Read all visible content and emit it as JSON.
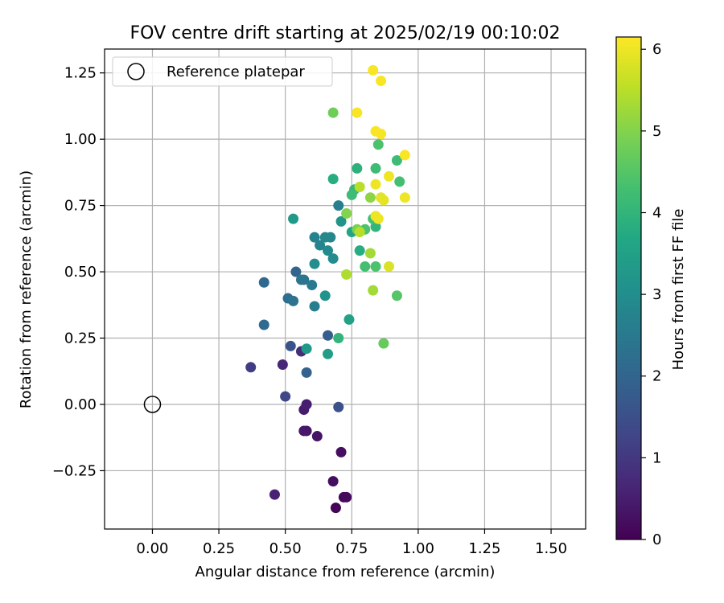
{
  "chart_data": {
    "type": "scatter",
    "title": "FOV centre drift starting at 2025/02/19 00:10:02",
    "xlabel": "Angular distance from reference (arcmin)",
    "ylabel": "Rotation from reference (arcmin)",
    "xlim": [
      -0.18,
      1.63
    ],
    "ylim": [
      -0.47,
      1.34
    ],
    "xticks": [
      0.0,
      0.25,
      0.5,
      0.75,
      1.0,
      1.25,
      1.5
    ],
    "xtick_labels": [
      "0.00",
      "0.25",
      "0.50",
      "0.75",
      "1.00",
      "1.25",
      "1.50"
    ],
    "yticks": [
      -0.25,
      0.0,
      0.25,
      0.5,
      0.75,
      1.0,
      1.25
    ],
    "ytick_labels": [
      "−0.25",
      "0.00",
      "0.25",
      "0.50",
      "0.75",
      "1.00",
      "1.25"
    ],
    "grid": true,
    "legend": {
      "position": "top-left",
      "entries": [
        {
          "label": "Reference platepar",
          "marker": "open-circle"
        }
      ]
    },
    "reference_point": {
      "x": 0.0,
      "y": 0.0
    },
    "colorbar": {
      "label": "Hours from first FF file",
      "colormap": "viridis",
      "range": [
        0,
        6.15
      ],
      "ticks": [
        0,
        1,
        2,
        3,
        4,
        5,
        6
      ],
      "tick_labels": [
        "0",
        "1",
        "2",
        "3",
        "4",
        "5",
        "6"
      ]
    },
    "color_variable": "Hours from first FF file",
    "points": [
      {
        "x": 0.69,
        "y": -0.39,
        "c": 0.05
      },
      {
        "x": 0.72,
        "y": -0.35,
        "c": 0.1
      },
      {
        "x": 0.73,
        "y": -0.35,
        "c": 0.15
      },
      {
        "x": 0.68,
        "y": -0.29,
        "c": 0.2
      },
      {
        "x": 0.71,
        "y": -0.18,
        "c": 0.25
      },
      {
        "x": 0.62,
        "y": -0.12,
        "c": 0.3
      },
      {
        "x": 0.58,
        "y": -0.1,
        "c": 0.35
      },
      {
        "x": 0.57,
        "y": -0.1,
        "c": 0.4
      },
      {
        "x": 0.57,
        "y": -0.02,
        "c": 0.45
      },
      {
        "x": 0.58,
        "y": 0.0,
        "c": 0.5
      },
      {
        "x": 0.46,
        "y": -0.34,
        "c": 0.6
      },
      {
        "x": 0.49,
        "y": 0.15,
        "c": 0.7
      },
      {
        "x": 0.56,
        "y": 0.2,
        "c": 0.8
      },
      {
        "x": 0.37,
        "y": 0.14,
        "c": 1.1
      },
      {
        "x": 0.5,
        "y": 0.03,
        "c": 1.3
      },
      {
        "x": 0.7,
        "y": -0.01,
        "c": 1.5
      },
      {
        "x": 0.52,
        "y": 0.22,
        "c": 1.6
      },
      {
        "x": 0.66,
        "y": 0.26,
        "c": 1.8
      },
      {
        "x": 0.58,
        "y": 0.12,
        "c": 1.9
      },
      {
        "x": 0.54,
        "y": 0.5,
        "c": 2.0
      },
      {
        "x": 0.42,
        "y": 0.46,
        "c": 2.1
      },
      {
        "x": 0.42,
        "y": 0.3,
        "c": 2.15
      },
      {
        "x": 0.51,
        "y": 0.4,
        "c": 2.2
      },
      {
        "x": 0.53,
        "y": 0.39,
        "c": 2.3
      },
      {
        "x": 0.57,
        "y": 0.47,
        "c": 2.35
      },
      {
        "x": 0.56,
        "y": 0.47,
        "c": 2.4
      },
      {
        "x": 0.6,
        "y": 0.45,
        "c": 2.5
      },
      {
        "x": 0.61,
        "y": 0.37,
        "c": 2.6
      },
      {
        "x": 0.7,
        "y": 0.75,
        "c": 2.6
      },
      {
        "x": 0.61,
        "y": 0.63,
        "c": 2.7
      },
      {
        "x": 0.63,
        "y": 0.6,
        "c": 2.75
      },
      {
        "x": 0.67,
        "y": 0.63,
        "c": 2.8
      },
      {
        "x": 0.65,
        "y": 0.63,
        "c": 2.85
      },
      {
        "x": 0.66,
        "y": 0.58,
        "c": 2.9
      },
      {
        "x": 0.68,
        "y": 0.55,
        "c": 2.95
      },
      {
        "x": 0.61,
        "y": 0.53,
        "c": 3.0
      },
      {
        "x": 0.65,
        "y": 0.41,
        "c": 3.1
      },
      {
        "x": 0.71,
        "y": 0.69,
        "c": 3.2
      },
      {
        "x": 0.53,
        "y": 0.7,
        "c": 3.3
      },
      {
        "x": 0.58,
        "y": 0.21,
        "c": 3.3
      },
      {
        "x": 0.66,
        "y": 0.19,
        "c": 3.4
      },
      {
        "x": 0.74,
        "y": 0.32,
        "c": 3.5
      },
      {
        "x": 0.75,
        "y": 0.65,
        "c": 3.6
      },
      {
        "x": 0.78,
        "y": 0.58,
        "c": 3.8
      },
      {
        "x": 0.68,
        "y": 0.85,
        "c": 3.8
      },
      {
        "x": 0.77,
        "y": 0.89,
        "c": 3.9
      },
      {
        "x": 0.84,
        "y": 0.67,
        "c": 4.0
      },
      {
        "x": 0.7,
        "y": 0.25,
        "c": 4.0
      },
      {
        "x": 0.76,
        "y": 0.81,
        "c": 4.1
      },
      {
        "x": 0.75,
        "y": 0.79,
        "c": 4.2
      },
      {
        "x": 0.84,
        "y": 0.89,
        "c": 4.2
      },
      {
        "x": 0.92,
        "y": 0.92,
        "c": 4.2
      },
      {
        "x": 0.93,
        "y": 0.84,
        "c": 4.3
      },
      {
        "x": 0.8,
        "y": 0.52,
        "c": 4.3
      },
      {
        "x": 0.83,
        "y": 0.7,
        "c": 4.3
      },
      {
        "x": 0.84,
        "y": 0.52,
        "c": 4.4
      },
      {
        "x": 0.8,
        "y": 0.66,
        "c": 4.4
      },
      {
        "x": 0.85,
        "y": 0.98,
        "c": 4.4
      },
      {
        "x": 0.92,
        "y": 0.41,
        "c": 4.5
      },
      {
        "x": 0.87,
        "y": 0.23,
        "c": 4.7
      },
      {
        "x": 0.68,
        "y": 1.1,
        "c": 4.8
      },
      {
        "x": 0.77,
        "y": 0.66,
        "c": 4.9
      },
      {
        "x": 0.73,
        "y": 0.72,
        "c": 5.0
      },
      {
        "x": 0.82,
        "y": 0.78,
        "c": 5.1
      },
      {
        "x": 0.82,
        "y": 0.57,
        "c": 5.3
      },
      {
        "x": 0.83,
        "y": 0.43,
        "c": 5.3
      },
      {
        "x": 0.73,
        "y": 0.49,
        "c": 5.4
      },
      {
        "x": 0.78,
        "y": 0.65,
        "c": 5.5
      },
      {
        "x": 0.78,
        "y": 0.82,
        "c": 5.5
      },
      {
        "x": 0.89,
        "y": 0.52,
        "c": 5.8
      },
      {
        "x": 0.87,
        "y": 0.77,
        "c": 5.9
      },
      {
        "x": 0.86,
        "y": 0.78,
        "c": 5.9
      },
      {
        "x": 0.84,
        "y": 0.71,
        "c": 6.0
      },
      {
        "x": 0.85,
        "y": 0.7,
        "c": 6.0
      },
      {
        "x": 0.84,
        "y": 0.83,
        "c": 6.0
      },
      {
        "x": 0.89,
        "y": 0.86,
        "c": 6.0
      },
      {
        "x": 0.95,
        "y": 0.78,
        "c": 6.0
      },
      {
        "x": 0.95,
        "y": 0.94,
        "c": 6.1
      },
      {
        "x": 0.84,
        "y": 1.03,
        "c": 6.1
      },
      {
        "x": 0.86,
        "y": 1.02,
        "c": 6.1
      },
      {
        "x": 0.77,
        "y": 1.1,
        "c": 6.1
      },
      {
        "x": 0.83,
        "y": 1.26,
        "c": 6.1
      },
      {
        "x": 0.86,
        "y": 1.22,
        "c": 6.1
      }
    ]
  }
}
